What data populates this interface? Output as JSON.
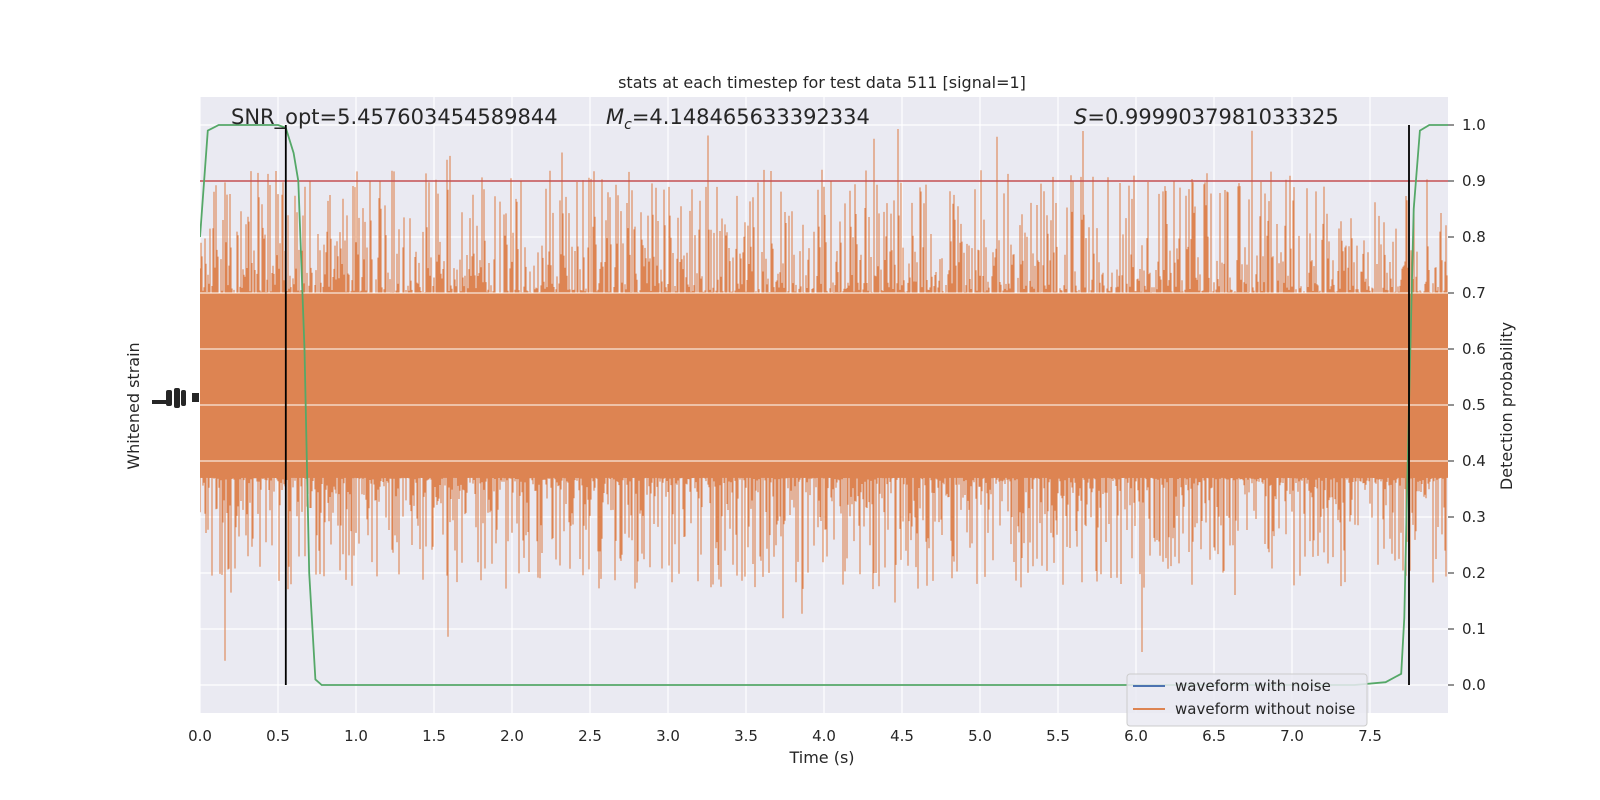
{
  "chart_data": {
    "type": "line",
    "title": "stats at each timestep for test data 511 [signal=1]",
    "xlabel": "Time (s)",
    "ylabel_left": "Whitened strain",
    "ylabel_right": "Detection probability",
    "xlim": [
      0.0,
      8.0
    ],
    "ylim_right": [
      -0.05,
      1.05
    ],
    "x_ticks": [
      "0.0",
      "0.5",
      "1.0",
      "1.5",
      "2.0",
      "2.5",
      "3.0",
      "3.5",
      "4.0",
      "4.5",
      "5.0",
      "5.5",
      "6.0",
      "6.5",
      "7.0",
      "7.5"
    ],
    "x_tick_values": [
      0.0,
      0.5,
      1.0,
      1.5,
      2.0,
      2.5,
      3.0,
      3.5,
      4.0,
      4.5,
      5.0,
      5.5,
      6.0,
      6.5,
      7.0,
      7.5
    ],
    "y_right_ticks": [
      "0.0",
      "0.1",
      "0.2",
      "0.3",
      "0.4",
      "0.5",
      "0.6",
      "0.7",
      "0.8",
      "0.9",
      "1.0"
    ],
    "y_right_tick_values": [
      0.0,
      0.1,
      0.2,
      0.3,
      0.4,
      0.5,
      0.6,
      0.7,
      0.8,
      0.9,
      1.0
    ],
    "grid": true,
    "annotations": {
      "snr": "SNR_opt=5.457603454589844",
      "mc_symbol": "M",
      "mc_sub": "c",
      "mc_value": "=4.148465633392334",
      "s_symbol": "S",
      "s_value": "=0.9999037981033325"
    },
    "threshold": {
      "y": 0.9,
      "color": "#c44e52"
    },
    "vertical_markers": [
      0.55,
      7.75
    ],
    "noise_band": {
      "description_values": "orange strain fill, approx range in right-axis units",
      "x_range": [
        0.0,
        8.0
      ],
      "core_low": 0.37,
      "core_high": 0.7,
      "spike_low_min": 0.02,
      "spike_high_max": 1.0
    },
    "series": [
      {
        "name": "waveform with noise",
        "color": "#4c72b0",
        "values": []
      },
      {
        "name": "waveform without noise",
        "color": "#dd8452",
        "values": []
      },
      {
        "color": "#55a868",
        "x": [
          0.0,
          0.05,
          0.12,
          0.2,
          0.3,
          0.4,
          0.5,
          0.55,
          0.6,
          0.63,
          0.67,
          0.7,
          0.74,
          0.78,
          0.85,
          1.0,
          2.0,
          3.0,
          4.0,
          5.0,
          6.0,
          7.0,
          7.4,
          7.6,
          7.7,
          7.72,
          7.75,
          7.78,
          7.82,
          7.88,
          8.0
        ],
        "y": [
          0.8,
          0.99,
          1.0,
          1.0,
          1.0,
          1.0,
          1.0,
          0.995,
          0.95,
          0.9,
          0.6,
          0.2,
          0.01,
          0.0,
          0.0,
          0.0,
          0.0,
          0.0,
          0.0,
          0.0,
          0.0,
          0.0,
          0.0,
          0.005,
          0.02,
          0.12,
          0.5,
          0.85,
          0.99,
          1.0,
          1.0
        ]
      }
    ],
    "legend": {
      "position": "lower-right",
      "entries": [
        "waveform with noise",
        "waveform without noise"
      ]
    },
    "colors": {
      "plot_bg": "#eaeaf2",
      "grid": "#ffffff",
      "strain": "#dd8452",
      "prob": "#55a868",
      "marker": "#000000"
    }
  }
}
